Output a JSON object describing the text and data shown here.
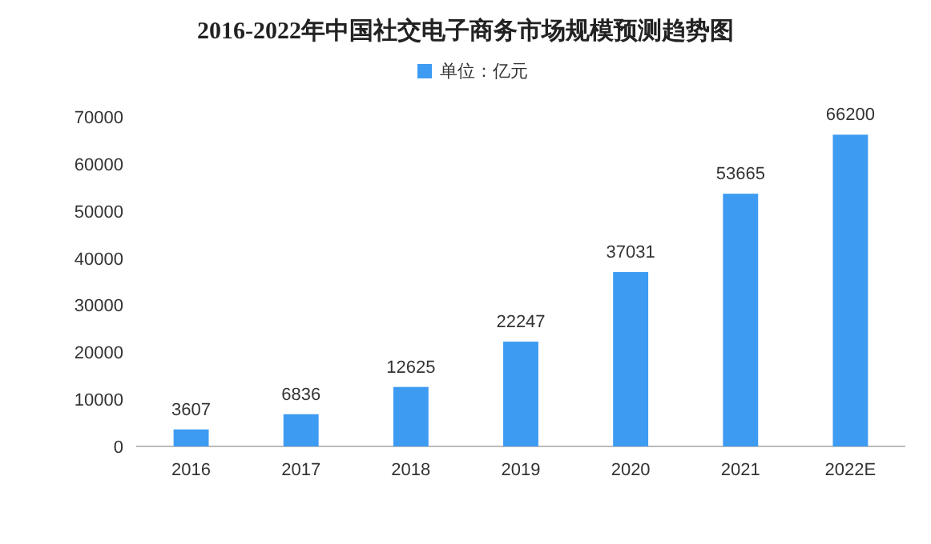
{
  "chart_data": {
    "type": "bar",
    "title": "2016-2022年中国社交电子商务市场规模预测趋势图",
    "categories": [
      "2016",
      "2017",
      "2018",
      "2019",
      "2020",
      "2021",
      "2022E"
    ],
    "series": [
      {
        "name": "单位：亿元",
        "color": "#3d9bf2",
        "values": [
          3607,
          6836,
          12625,
          22247,
          37031,
          53665,
          66200
        ]
      }
    ],
    "ylim": [
      0,
      70000
    ],
    "yticks": [
      0,
      10000,
      20000,
      30000,
      40000,
      50000,
      60000,
      70000
    ],
    "data_labels": true,
    "legend": "top",
    "grid": false
  }
}
